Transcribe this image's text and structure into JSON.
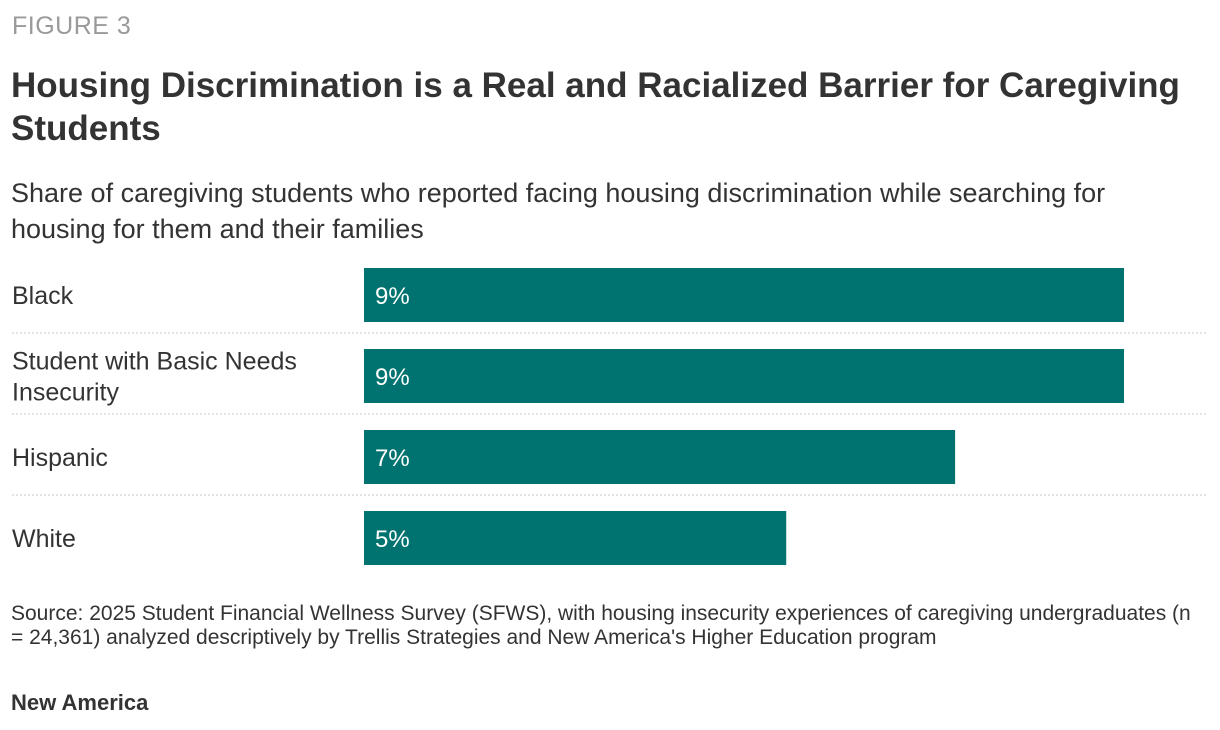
{
  "figure_label": "FIGURE 3",
  "title": "Housing Discrimination is a Real and Racialized Barrier for Caregiving Students",
  "subtitle": "Share of caregiving students who reported facing housing discrimination while searching for housing for them and their families",
  "source": "Source: 2025 Student Financial Wellness Survey (SFWS), with housing insecurity experiences of caregiving undergraduates (n = 24,361) analyzed descriptively by Trellis Strategies and New America's Higher Education program",
  "brand": "New America",
  "colors": {
    "bar": "#007370",
    "divider": "#c8c8c8"
  },
  "chart_data": {
    "type": "bar",
    "orientation": "horizontal",
    "categories": [
      [
        "Black"
      ],
      [
        "Student with Basic Needs",
        "Insecurity"
      ],
      [
        "Hispanic"
      ],
      [
        "White"
      ]
    ],
    "values": [
      9,
      9,
      7,
      5
    ],
    "value_labels": [
      "9%",
      "9%",
      "7%",
      "5%"
    ],
    "unit": "%",
    "xlim": [
      0,
      9
    ]
  }
}
